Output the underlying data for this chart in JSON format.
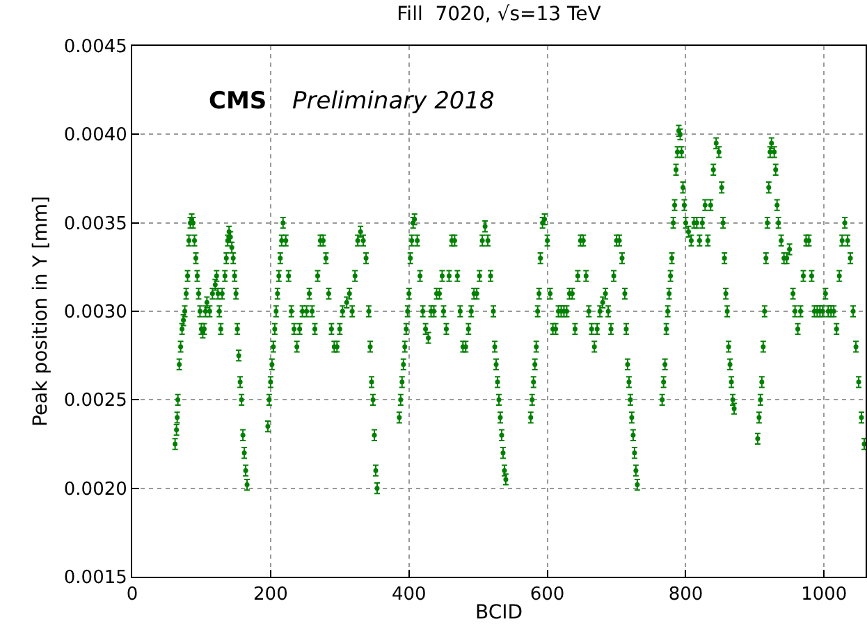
{
  "chart_data": {
    "type": "scatter",
    "title": "Fill  7020, √s=13 TeV",
    "xlabel": "BCID",
    "ylabel": "Peak position in Y [mm]",
    "annotations": [
      "CMS",
      "Preliminary 2018"
    ],
    "xlim": [
      0,
      1060
    ],
    "xticks": [
      0,
      200,
      400,
      600,
      800,
      1000
    ],
    "ylim": [
      0.0015,
      0.0045
    ],
    "yticks": [
      0.0015,
      {
        "value": 0.002,
        "label": "0.0020"
      },
      0.0025,
      {
        "value": 0.003,
        "label": "0.0030"
      },
      0.0035,
      {
        "value": 0.004,
        "label": "0.0040"
      },
      0.0045
    ],
    "grid": true,
    "marker": "circle",
    "series": [
      {
        "color": "#008000",
        "x": [
          62,
          64,
          65,
          66,
          68,
          70,
          72,
          74,
          76,
          78,
          80,
          82,
          84,
          86,
          88,
          90,
          92,
          94,
          96,
          98,
          100,
          102,
          104,
          106,
          108,
          112,
          116,
          120,
          122,
          124,
          126,
          128,
          130,
          134,
          136,
          138,
          140,
          142,
          144,
          146,
          148,
          150,
          152,
          154,
          156,
          158,
          160,
          162,
          164,
          166,
          196,
          198,
          200,
          202,
          204,
          206,
          208,
          210,
          212,
          214,
          216,
          218,
          222,
          226,
          230,
          234,
          238,
          242,
          246,
          252,
          256,
          260,
          264,
          268,
          272,
          276,
          280,
          284,
          288,
          292,
          296,
          300,
          304,
          310,
          314,
          318,
          322,
          326,
          330,
          334,
          338,
          342,
          344,
          346,
          348,
          350,
          352,
          354,
          386,
          388,
          390,
          392,
          394,
          396,
          398,
          400,
          402,
          404,
          406,
          408,
          412,
          416,
          420,
          424,
          428,
          432,
          436,
          440,
          444,
          448,
          450,
          454,
          458,
          462,
          466,
          470,
          474,
          478,
          482,
          486,
          490,
          494,
          498,
          502,
          506,
          510,
          514,
          518,
          522,
          524,
          526,
          528,
          530,
          532,
          534,
          536,
          538,
          540,
          576,
          578,
          580,
          582,
          584,
          586,
          588,
          590,
          593,
          596,
          600,
          604,
          608,
          612,
          616,
          620,
          624,
          628,
          632,
          636,
          640,
          644,
          648,
          652,
          656,
          660,
          664,
          668,
          672,
          676,
          680,
          684,
          688,
          692,
          696,
          700,
          704,
          708,
          712,
          714,
          716,
          718,
          720,
          722,
          724,
          726,
          728,
          730,
          766,
          768,
          770,
          772,
          774,
          776,
          778,
          780,
          782,
          784,
          786,
          788,
          790,
          792,
          794,
          796,
          798,
          800,
          804,
          808,
          812,
          816,
          820,
          824,
          828,
          832,
          836,
          840,
          844,
          848,
          852,
          854,
          856,
          858,
          860,
          862,
          864,
          866,
          868,
          870,
          904,
          906,
          908,
          910,
          912,
          914,
          916,
          918,
          920,
          922,
          924,
          928,
          930,
          932,
          934,
          938,
          942,
          946,
          950,
          955,
          958,
          962,
          966,
          970,
          974,
          978,
          982,
          986,
          990,
          994,
          998,
          1002,
          1006,
          1010,
          1014,
          1018,
          1022,
          1026,
          1030,
          1034,
          1038,
          1042,
          1046,
          1050,
          1054,
          1058
        ],
        "values": [
          0.00225,
          0.00233,
          0.0024,
          0.0025,
          0.0027,
          0.0028,
          0.0029,
          0.00295,
          0.003,
          0.0031,
          0.0032,
          0.0034,
          0.0035,
          0.00352,
          0.0035,
          0.0034,
          0.0033,
          0.0032,
          0.0031,
          0.003,
          0.0029,
          0.00288,
          0.0029,
          0.003,
          0.00305,
          0.003,
          0.0031,
          0.00315,
          0.0032,
          0.0031,
          0.003,
          0.0029,
          0.0031,
          0.0032,
          0.0033,
          0.0034,
          0.00345,
          0.00342,
          0.00336,
          0.0033,
          0.0032,
          0.0031,
          0.0029,
          0.00275,
          0.0026,
          0.0025,
          0.0023,
          0.0022,
          0.0021,
          0.00202,
          0.00235,
          0.0025,
          0.0026,
          0.0027,
          0.0028,
          0.0029,
          0.003,
          0.0031,
          0.0032,
          0.0033,
          0.0034,
          0.0035,
          0.0034,
          0.0032,
          0.003,
          0.0029,
          0.0028,
          0.0029,
          0.003,
          0.003,
          0.0031,
          0.003,
          0.0029,
          0.0032,
          0.0034,
          0.0034,
          0.0033,
          0.0031,
          0.0029,
          0.0028,
          0.0028,
          0.0029,
          0.003,
          0.00305,
          0.0031,
          0.003,
          0.0032,
          0.0034,
          0.00345,
          0.0034,
          0.0033,
          0.003,
          0.0028,
          0.0026,
          0.0025,
          0.0023,
          0.0021,
          0.002,
          0.0024,
          0.0025,
          0.0026,
          0.0027,
          0.0028,
          0.0029,
          0.003,
          0.0031,
          0.0033,
          0.0034,
          0.0035,
          0.00352,
          0.0034,
          0.0032,
          0.003,
          0.0029,
          0.00285,
          0.003,
          0.003,
          0.0031,
          0.0031,
          0.0032,
          0.003,
          0.0029,
          0.0032,
          0.0034,
          0.0034,
          0.0032,
          0.003,
          0.0028,
          0.0028,
          0.0029,
          0.003,
          0.0031,
          0.0031,
          0.0032,
          0.0034,
          0.00348,
          0.0034,
          0.0032,
          0.003,
          0.0028,
          0.0027,
          0.0026,
          0.0025,
          0.0024,
          0.0023,
          0.0022,
          0.0021,
          0.00205,
          0.0024,
          0.0025,
          0.0026,
          0.0027,
          0.0028,
          0.003,
          0.0031,
          0.0033,
          0.0035,
          0.00352,
          0.0034,
          0.0031,
          0.0029,
          0.0029,
          0.003,
          0.003,
          0.003,
          0.003,
          0.0031,
          0.0031,
          0.0029,
          0.0032,
          0.0034,
          0.0034,
          0.0032,
          0.003,
          0.0029,
          0.0028,
          0.0029,
          0.003,
          0.00305,
          0.0031,
          0.003,
          0.0029,
          0.0032,
          0.0034,
          0.0034,
          0.0033,
          0.0031,
          0.0029,
          0.0027,
          0.0026,
          0.0025,
          0.0024,
          0.0023,
          0.0022,
          0.0021,
          0.00202,
          0.0025,
          0.0026,
          0.0027,
          0.0029,
          0.003,
          0.0031,
          0.0032,
          0.0033,
          0.0035,
          0.0036,
          0.0038,
          0.0039,
          0.00402,
          0.004,
          0.0039,
          0.0037,
          0.0036,
          0.0035,
          0.00345,
          0.0034,
          0.0035,
          0.0035,
          0.0034,
          0.0035,
          0.0036,
          0.0034,
          0.0036,
          0.0038,
          0.00395,
          0.0039,
          0.0037,
          0.0035,
          0.0033,
          0.0031,
          0.003,
          0.0028,
          0.0027,
          0.0026,
          0.0025,
          0.00245,
          0.00228,
          0.0024,
          0.0025,
          0.0026,
          0.0028,
          0.003,
          0.0033,
          0.0035,
          0.0037,
          0.0039,
          0.00395,
          0.0039,
          0.0038,
          0.0036,
          0.0035,
          0.0034,
          0.0033,
          0.0033,
          0.00335,
          0.0031,
          0.003,
          0.0029,
          0.003,
          0.0032,
          0.0034,
          0.0034,
          0.0032,
          0.003,
          0.003,
          0.003,
          0.003,
          0.0031,
          0.003,
          0.003,
          0.003,
          0.0029,
          0.0032,
          0.0034,
          0.0035,
          0.0034,
          0.0033,
          0.003,
          0.0028,
          0.0026,
          0.0024,
          0.00225
        ],
        "errors": [
          3e-05,
          3e-05,
          3e-05,
          3e-05,
          3e-05,
          3e-05,
          3e-05,
          3e-05,
          3e-05,
          3e-05,
          3e-05,
          3e-05,
          3e-05,
          3e-05,
          3e-05,
          3e-05,
          3e-05,
          3e-05,
          3e-05,
          3e-05,
          3e-05,
          3e-05,
          3e-05,
          3e-05,
          3e-05,
          3e-05,
          3e-05,
          3e-05,
          3e-05,
          3e-05,
          3e-05,
          3e-05,
          3e-05,
          3e-05,
          3e-05,
          3e-05,
          3e-05,
          3e-05,
          3e-05,
          3e-05,
          3e-05,
          3e-05,
          3e-05,
          3e-05,
          3e-05,
          3e-05,
          3e-05,
          3e-05,
          3e-05,
          3e-05,
          3e-05,
          3e-05,
          3e-05,
          3e-05,
          3e-05,
          3e-05,
          3e-05,
          3e-05,
          3e-05,
          3e-05,
          3e-05,
          3e-05,
          3e-05,
          3e-05,
          3e-05,
          3e-05,
          3e-05,
          3e-05,
          3e-05,
          3e-05,
          3e-05,
          3e-05,
          3e-05,
          3e-05,
          3e-05,
          3e-05,
          3e-05,
          3e-05,
          3e-05,
          3e-05,
          3e-05,
          3e-05,
          3e-05,
          3e-05,
          3e-05,
          3e-05,
          3e-05,
          3e-05,
          3e-05,
          3e-05,
          3e-05,
          3e-05,
          3e-05,
          3e-05,
          3e-05,
          3e-05,
          3e-05,
          3e-05,
          3e-05,
          3e-05,
          3e-05,
          3e-05,
          3e-05,
          3e-05,
          3e-05,
          3e-05,
          3e-05,
          3e-05,
          3e-05,
          3e-05,
          3e-05,
          3e-05,
          3e-05,
          3e-05,
          3e-05,
          3e-05,
          3e-05,
          3e-05,
          3e-05,
          3e-05,
          3e-05,
          3e-05,
          3e-05,
          3e-05,
          3e-05,
          3e-05,
          3e-05,
          3e-05,
          3e-05,
          3e-05,
          3e-05,
          3e-05,
          3e-05,
          3e-05,
          3e-05,
          3e-05,
          3e-05,
          3e-05,
          3e-05,
          3e-05,
          3e-05,
          3e-05,
          3e-05,
          3e-05,
          3e-05,
          3e-05,
          3e-05,
          3e-05,
          3e-05,
          3e-05,
          3e-05,
          3e-05,
          3e-05,
          3e-05,
          3e-05,
          3e-05,
          3e-05,
          3e-05,
          3e-05,
          3e-05,
          3e-05,
          3e-05,
          3e-05,
          3e-05,
          3e-05,
          3e-05,
          3e-05,
          3e-05,
          3e-05,
          3e-05,
          3e-05,
          3e-05,
          3e-05,
          3e-05,
          3e-05,
          3e-05,
          3e-05,
          3e-05,
          3e-05,
          3e-05,
          3e-05,
          3e-05,
          3e-05,
          3e-05,
          3e-05,
          3e-05,
          3e-05,
          3e-05,
          3e-05,
          3e-05,
          3e-05,
          3e-05,
          3e-05,
          3e-05,
          3e-05,
          3e-05,
          3e-05,
          3e-05,
          3e-05,
          3e-05,
          3e-05,
          3e-05,
          3e-05,
          3e-05,
          3e-05,
          3e-05,
          3e-05,
          3e-05,
          3e-05,
          3e-05,
          3e-05,
          3e-05,
          3e-05,
          3e-05,
          3e-05,
          3e-05,
          3e-05,
          3e-05,
          3e-05,
          3e-05,
          3e-05,
          3e-05,
          3e-05,
          3e-05,
          3e-05,
          3e-05,
          3e-05,
          3e-05,
          3e-05,
          3e-05,
          3e-05,
          3e-05,
          3e-05,
          3e-05,
          3e-05,
          3e-05,
          3e-05,
          3e-05,
          3e-05,
          3e-05,
          3e-05,
          3e-05,
          3e-05,
          3e-05,
          3e-05,
          3e-05,
          3e-05,
          3e-05,
          3e-05,
          3e-05,
          3e-05,
          3e-05,
          3e-05,
          3e-05,
          3e-05,
          3e-05,
          3e-05,
          3e-05,
          3e-05,
          3e-05,
          3e-05,
          3e-05,
          3e-05,
          3e-05,
          3e-05,
          3e-05,
          3e-05,
          3e-05,
          3e-05,
          3e-05,
          3e-05,
          3e-05,
          3e-05,
          3e-05,
          3e-05,
          3e-05,
          3e-05,
          3e-05,
          3e-05,
          3e-05,
          3e-05,
          3e-05
        ]
      }
    ]
  }
}
